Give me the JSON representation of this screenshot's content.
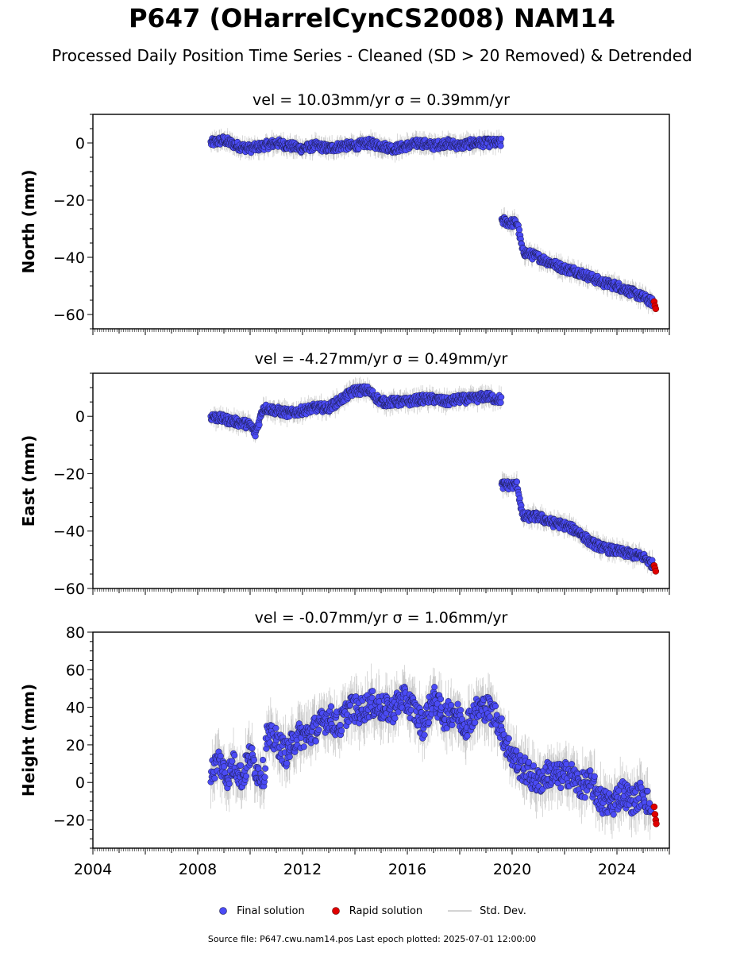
{
  "title": "P647 (OHarrelCynCS2008) NAM14",
  "subtitle": "Processed Daily Position Time Series - Cleaned (SD > 20 Removed) & Detrended",
  "legend": {
    "final": "Final solution",
    "rapid": "Rapid solution",
    "std": "Std. Dev."
  },
  "footer": "Source file: P647.cwu.nam14.pos  Last epoch plotted: 2025-07-01 12:00:00",
  "colors": {
    "final": "#4b4bf5",
    "rapid": "#e00000",
    "std": "#bbbbbb",
    "edge": "#1a1a4a"
  },
  "chart_data": [
    {
      "type": "scatter",
      "title": "vel = 10.03mm/yr   σ = 0.39mm/yr",
      "ylabel": "North (mm)",
      "xlim": [
        2004,
        2026
      ],
      "ylim": [
        -65,
        10
      ],
      "yticks": [
        0,
        -20,
        -40,
        -60
      ],
      "ytick_labels": [
        "0",
        "−20",
        "−40",
        "−60"
      ],
      "xticks": [
        2004,
        2008,
        2012,
        2016,
        2020,
        2024
      ],
      "xtick_labels": [],
      "final_series": {
        "x": [
          2008.5,
          2009.0,
          2009.5,
          2010.0,
          2010.5,
          2011.0,
          2011.5,
          2012.0,
          2012.5,
          2013.0,
          2013.5,
          2014.0,
          2014.5,
          2015.0,
          2015.5,
          2016.0,
          2016.5,
          2017.0,
          2017.5,
          2018.0,
          2018.5,
          2019.0,
          2019.4,
          2019.6,
          2019.9,
          2020.2,
          2020.4,
          2020.7,
          2021.0,
          2021.5,
          2022.0,
          2022.5,
          2023.0,
          2023.5,
          2024.0,
          2024.5,
          2025.0,
          2025.4
        ],
        "y": [
          0,
          1,
          -1,
          -2,
          -1,
          0,
          -1,
          -2,
          -1,
          -2,
          -1,
          -1,
          0,
          -1,
          -2,
          -1,
          0,
          -1,
          0,
          -1,
          0,
          0,
          0,
          -27,
          -28,
          -28,
          -38,
          -39,
          -40,
          -42,
          -44,
          -45,
          -47,
          -49,
          -50,
          -52,
          -54,
          -56
        ]
      },
      "rapid_series": {
        "x": [
          2025.42,
          2025.45,
          2025.48
        ],
        "y": [
          -55.5,
          -57,
          -58
        ]
      }
    },
    {
      "type": "scatter",
      "title": "vel = -4.27mm/yr   σ = 0.49mm/yr",
      "ylabel": "East (mm)",
      "xlim": [
        2004,
        2026
      ],
      "ylim": [
        -60,
        15
      ],
      "yticks": [
        0,
        -20,
        -40,
        -60
      ],
      "ytick_labels": [
        "0",
        "−20",
        "−40",
        "−60"
      ],
      "xticks": [
        2004,
        2008,
        2012,
        2016,
        2020,
        2024
      ],
      "xtick_labels": [],
      "final_series": {
        "x": [
          2008.5,
          2009.0,
          2009.5,
          2010.0,
          2010.2,
          2010.5,
          2011.0,
          2011.5,
          2012.0,
          2012.5,
          2013.0,
          2013.5,
          2014.0,
          2014.5,
          2015.0,
          2015.5,
          2016.0,
          2016.5,
          2017.0,
          2017.5,
          2018.0,
          2018.5,
          2019.0,
          2019.4,
          2019.6,
          2019.9,
          2020.2,
          2020.4,
          2020.7,
          2021.0,
          2021.5,
          2022.0,
          2022.5,
          2023.0,
          2023.5,
          2024.0,
          2024.5,
          2025.0,
          2025.4
        ],
        "y": [
          0,
          -1,
          -2,
          -3,
          -6,
          3,
          2,
          1,
          2,
          3,
          3,
          6,
          9,
          9,
          5,
          5,
          5,
          6,
          6,
          5,
          6,
          6,
          7,
          6,
          -24,
          -24,
          -24,
          -35,
          -35,
          -35,
          -37,
          -38,
          -40,
          -44,
          -46,
          -47,
          -48,
          -49,
          -52
        ]
      },
      "rapid_series": {
        "x": [
          2025.42,
          2025.45,
          2025.48
        ],
        "y": [
          -52,
          -53,
          -54
        ]
      }
    },
    {
      "type": "scatter",
      "title": "vel = -0.07mm/yr   σ = 1.06mm/yr",
      "ylabel": "Height (mm)",
      "xlim": [
        2004,
        2026
      ],
      "ylim": [
        -35,
        80
      ],
      "yticks": [
        80,
        60,
        40,
        20,
        0,
        -20
      ],
      "ytick_labels": [
        "80",
        "60",
        "40",
        "20",
        "0",
        "−20"
      ],
      "xticks": [
        2004,
        2008,
        2012,
        2016,
        2020,
        2024
      ],
      "xtick_labels": [
        "2004",
        "2008",
        "2012",
        "2016",
        "2020",
        "2024"
      ],
      "final_series": {
        "x": [
          2008.5,
          2008.8,
          2009.1,
          2009.4,
          2009.7,
          2010.0,
          2010.3,
          2010.6,
          2011.0,
          2011.4,
          2011.8,
          2012.2,
          2012.6,
          2013.0,
          2013.4,
          2013.8,
          2014.2,
          2014.6,
          2015.0,
          2015.4,
          2015.8,
          2016.2,
          2016.6,
          2017.0,
          2017.4,
          2017.8,
          2018.2,
          2018.6,
          2019.0,
          2019.4,
          2019.8,
          2020.2,
          2020.6,
          2021.0,
          2021.4,
          2021.8,
          2022.2,
          2022.6,
          2023.0,
          2023.4,
          2023.8,
          2024.2,
          2024.6,
          2025.0,
          2025.3
        ],
        "y": [
          5,
          12,
          3,
          10,
          2,
          15,
          5,
          25,
          22,
          15,
          25,
          25,
          30,
          35,
          30,
          40,
          38,
          42,
          40,
          38,
          45,
          40,
          30,
          45,
          35,
          38,
          30,
          38,
          40,
          35,
          20,
          10,
          5,
          0,
          5,
          3,
          5,
          -2,
          0,
          -10,
          -12,
          -5,
          -10,
          -5,
          -15
        ]
      },
      "rapid_series": {
        "x": [
          2025.42,
          2025.45,
          2025.48,
          2025.5
        ],
        "y": [
          -13,
          -17,
          -20,
          -22
        ]
      }
    }
  ]
}
